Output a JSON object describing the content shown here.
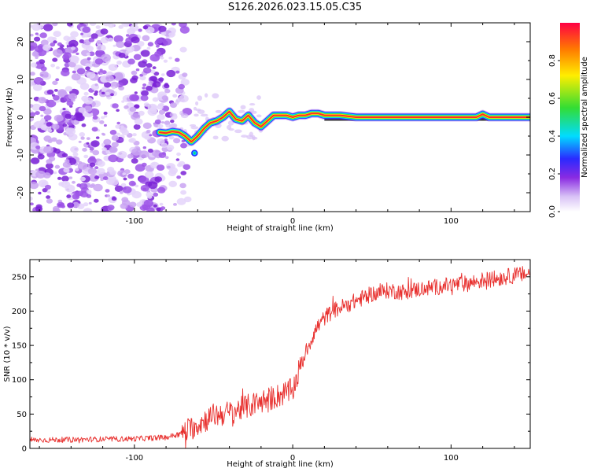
{
  "title": "S126.2026.023.15.05.C35",
  "chart_data": [
    {
      "type": "heatmap",
      "xlabel": "Height of straight line (km)",
      "ylabel": "Frequency (Hz)",
      "xlim": [
        -166,
        150
      ],
      "ylim": [
        -25,
        25
      ],
      "xticks": [
        -100,
        0,
        100
      ],
      "yticks": [
        -20,
        -10,
        0,
        10,
        20
      ],
      "colorbar": {
        "label": "Normalized spectral amplitude",
        "range": [
          0,
          1
        ],
        "ticks": [
          "0.0",
          "0.2",
          "0.4",
          "0.6",
          "0.8"
        ],
        "tick_values": [
          0,
          0.2,
          0.4,
          0.6,
          0.8
        ]
      },
      "noise_region_x": [
        -166,
        -66
      ],
      "ridge": {
        "x": [
          -84,
          -80,
          -76,
          -72,
          -68,
          -64,
          -60,
          -56,
          -52,
          -48,
          -44,
          -40,
          -36,
          -32,
          -28,
          -24,
          -20,
          -16,
          -12,
          -8,
          -4,
          0,
          4,
          8,
          12,
          16,
          20,
          30,
          40,
          60,
          80,
          100,
          110,
          116,
          120,
          124,
          130,
          150
        ],
        "y": [
          -4,
          -4.2,
          -3.8,
          -4.0,
          -5,
          -6.5,
          -5,
          -3,
          -1.5,
          -1,
          0,
          1.5,
          -0.5,
          -1,
          0.5,
          -1.5,
          -2.5,
          -1,
          0.5,
          0.5,
          0.5,
          0,
          0.5,
          0.5,
          1,
          1,
          0.5,
          0.5,
          0,
          0,
          0,
          0,
          0,
          0,
          0.8,
          0,
          0,
          0
        ]
      }
    },
    {
      "type": "line",
      "xlabel": "Height of straight line (km)",
      "ylabel": "SNR (10 * v/v)",
      "xlim": [
        -166,
        150
      ],
      "ylim": [
        0,
        275
      ],
      "xticks": [
        -100,
        0,
        100
      ],
      "yticks": [
        0,
        50,
        100,
        150,
        200,
        250
      ],
      "color": "#e8302e",
      "trend": {
        "x": [
          -166,
          -100,
          -80,
          -70,
          -60,
          -50,
          -40,
          -30,
          -20,
          -10,
          0,
          5,
          10,
          15,
          20,
          25,
          30,
          40,
          50,
          60,
          70,
          80,
          90,
          100,
          110,
          120,
          130,
          140,
          150
        ],
        "y": [
          12,
          14,
          16,
          22,
          35,
          48,
          52,
          60,
          68,
          76,
          85,
          120,
          150,
          175,
          190,
          200,
          205,
          215,
          225,
          230,
          228,
          232,
          235,
          238,
          240,
          245,
          248,
          252,
          255
        ]
      }
    }
  ]
}
